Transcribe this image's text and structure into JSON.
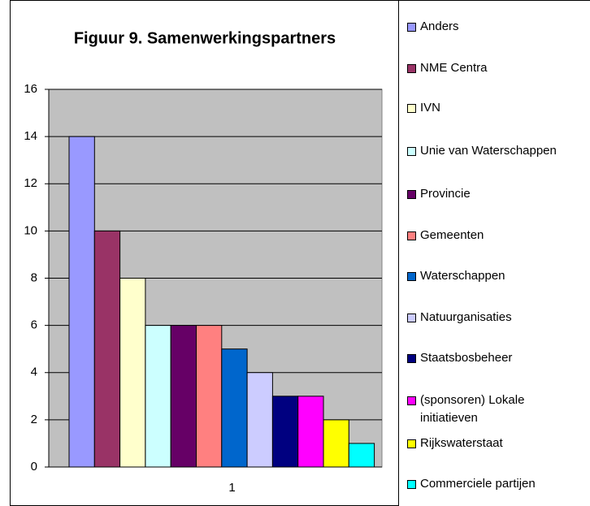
{
  "chart_data": {
    "type": "bar",
    "title": "Figuur 9. Samenwerkingspartners",
    "categories": [
      "1"
    ],
    "ylim": [
      0,
      16
    ],
    "yticks": [
      0,
      2,
      4,
      6,
      8,
      10,
      12,
      14,
      16
    ],
    "grid": true,
    "legend": "right",
    "series": [
      {
        "name": "Anders",
        "color": "#9999ff",
        "values": [
          14
        ]
      },
      {
        "name": "NME Centra",
        "color": "#993366",
        "values": [
          10
        ]
      },
      {
        "name": "IVN",
        "color": "#ffffcc",
        "values": [
          8
        ]
      },
      {
        "name": "Unie van Waterschappen",
        "color": "#ccffff",
        "values": [
          6
        ]
      },
      {
        "name": "Provincie",
        "color": "#660066",
        "values": [
          6
        ]
      },
      {
        "name": "Gemeenten",
        "color": "#ff8080",
        "values": [
          6
        ]
      },
      {
        "name": "Waterschappen",
        "color": "#0066cc",
        "values": [
          5
        ]
      },
      {
        "name": "Natuurganisaties",
        "color": "#ccccff",
        "values": [
          4
        ]
      },
      {
        "name": "Staatsbosbeheer",
        "color": "#000080",
        "values": [
          3
        ]
      },
      {
        "name": "(sponsoren) Lokale initiatieven",
        "color": "#ff00ff",
        "values": [
          3
        ]
      },
      {
        "name": "Rijkswaterstaat",
        "color": "#ffff00",
        "values": [
          2
        ]
      },
      {
        "name": "Commerciele partijen",
        "color": "#00ffff",
        "values": [
          1
        ]
      }
    ]
  }
}
